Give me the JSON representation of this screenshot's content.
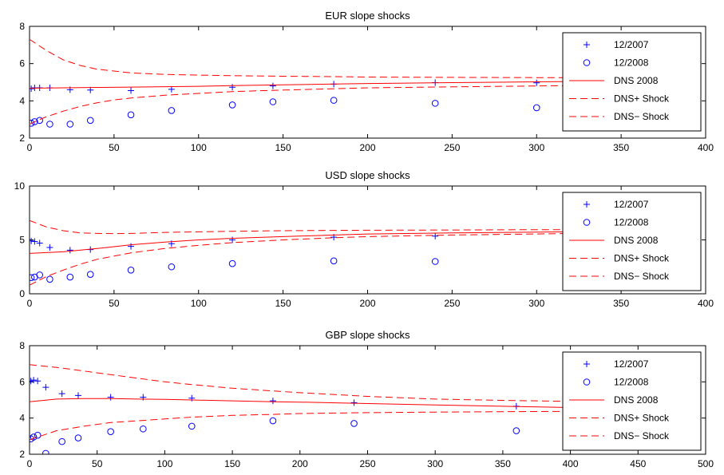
{
  "colors": {
    "observed": "#0000ff",
    "model": "#ff0000",
    "axes": "#000000",
    "background": "#ffffff"
  },
  "chart_data": [
    {
      "type": "line",
      "title": "EUR slope shocks",
      "xlabel": "",
      "ylabel": "",
      "xlim": [
        0,
        400
      ],
      "ylim": [
        2,
        8
      ],
      "xticks": [
        0,
        50,
        100,
        150,
        200,
        250,
        300,
        350,
        400
      ],
      "yticks": [
        2,
        4,
        6,
        8
      ],
      "legend": {
        "position": "top-right",
        "entries": [
          "12/2007",
          "12/2008",
          "DNS 2008",
          "DNS+ Shock",
          "DNS− Shock"
        ]
      },
      "series": [
        {
          "name": "12/2007",
          "style": "plus",
          "x": [
            1,
            3,
            6,
            12,
            24,
            36,
            60,
            84,
            120,
            144,
            180,
            240,
            300
          ],
          "y": [
            4.65,
            4.7,
            4.7,
            4.7,
            4.6,
            4.58,
            4.55,
            4.62,
            4.73,
            4.8,
            4.9,
            4.98,
            4.97
          ]
        },
        {
          "name": "12/2008",
          "style": "circle",
          "x": [
            1,
            3,
            6,
            12,
            24,
            36,
            60,
            84,
            120,
            144,
            180,
            240,
            300
          ],
          "y": [
            2.8,
            2.88,
            2.95,
            2.75,
            2.75,
            2.95,
            3.25,
            3.48,
            3.78,
            3.95,
            4.03,
            3.87,
            3.63
          ]
        },
        {
          "name": "DNS 2008",
          "style": "solid",
          "x": [
            0,
            20,
            40,
            60,
            80,
            100,
            120,
            150,
            180,
            200,
            250,
            300,
            320
          ],
          "y": [
            4.68,
            4.7,
            4.72,
            4.74,
            4.76,
            4.78,
            4.82,
            4.86,
            4.9,
            4.93,
            4.98,
            5.02,
            5.04
          ]
        },
        {
          "name": "DNS+ Shock",
          "style": "dashed",
          "x": [
            0,
            5,
            10,
            20,
            30,
            40,
            50,
            60,
            80,
            100,
            120,
            150,
            180,
            200,
            250,
            300,
            320
          ],
          "y": [
            7.3,
            7.0,
            6.7,
            6.2,
            5.9,
            5.7,
            5.6,
            5.5,
            5.42,
            5.38,
            5.35,
            5.32,
            5.3,
            5.28,
            5.26,
            5.25,
            5.25
          ]
        },
        {
          "name": "DNS− Shock",
          "style": "dashed",
          "x": [
            0,
            5,
            10,
            20,
            30,
            40,
            50,
            60,
            80,
            100,
            120,
            150,
            180,
            200,
            250,
            300,
            320
          ],
          "y": [
            2.75,
            2.95,
            3.15,
            3.45,
            3.7,
            3.9,
            4.05,
            4.15,
            4.3,
            4.4,
            4.5,
            4.58,
            4.65,
            4.7,
            4.75,
            4.8,
            4.82
          ]
        }
      ]
    },
    {
      "type": "line",
      "title": "USD slope shocks",
      "xlabel": "",
      "ylabel": "",
      "xlim": [
        0,
        400
      ],
      "ylim": [
        0,
        10
      ],
      "xticks": [
        0,
        50,
        100,
        150,
        200,
        250,
        300,
        350,
        400
      ],
      "yticks": [
        0,
        5,
        10
      ],
      "legend": {
        "position": "top-right",
        "entries": [
          "12/2007",
          "12/2008",
          "DNS 2008",
          "DNS+ Shock",
          "DNS− Shock"
        ]
      },
      "series": [
        {
          "name": "12/2007",
          "style": "plus",
          "x": [
            1,
            3,
            6,
            12,
            24,
            36,
            60,
            84,
            120,
            180,
            240
          ],
          "y": [
            4.9,
            4.85,
            4.7,
            4.3,
            4.05,
            4.1,
            4.4,
            4.65,
            5.0,
            5.25,
            5.35
          ]
        },
        {
          "name": "12/2008",
          "style": "circle",
          "x": [
            1,
            3,
            6,
            12,
            24,
            36,
            60,
            84,
            120,
            180,
            240
          ],
          "y": [
            1.5,
            1.55,
            1.75,
            1.35,
            1.55,
            1.8,
            2.2,
            2.5,
            2.8,
            3.05,
            3.0
          ]
        },
        {
          "name": "DNS 2008",
          "style": "solid",
          "x": [
            0,
            20,
            40,
            60,
            80,
            100,
            120,
            150,
            180,
            200,
            250,
            300,
            320
          ],
          "y": [
            3.75,
            3.9,
            4.2,
            4.55,
            4.8,
            5.0,
            5.15,
            5.3,
            5.45,
            5.55,
            5.65,
            5.72,
            5.75
          ]
        },
        {
          "name": "DNS+ Shock",
          "style": "dashed",
          "x": [
            0,
            5,
            10,
            20,
            30,
            40,
            50,
            60,
            80,
            100,
            120,
            150,
            180,
            200,
            250,
            300,
            320
          ],
          "y": [
            6.8,
            6.5,
            6.2,
            5.85,
            5.65,
            5.6,
            5.58,
            5.6,
            5.7,
            5.75,
            5.8,
            5.85,
            5.88,
            5.9,
            5.92,
            5.95,
            5.95
          ]
        },
        {
          "name": "DNS− Shock",
          "style": "dashed",
          "x": [
            0,
            5,
            10,
            20,
            30,
            40,
            50,
            60,
            80,
            100,
            120,
            150,
            180,
            200,
            250,
            300,
            320
          ],
          "y": [
            0.8,
            1.2,
            1.6,
            2.2,
            2.75,
            3.2,
            3.5,
            3.8,
            4.2,
            4.5,
            4.75,
            5.0,
            5.2,
            5.3,
            5.45,
            5.55,
            5.6
          ]
        }
      ]
    },
    {
      "type": "line",
      "title": "GBP slope shocks",
      "xlabel": "",
      "ylabel": "",
      "xlim": [
        0,
        500
      ],
      "ylim": [
        2,
        8
      ],
      "xticks": [
        0,
        50,
        100,
        150,
        200,
        250,
        300,
        350,
        400,
        450,
        500
      ],
      "yticks": [
        2,
        4,
        6,
        8
      ],
      "legend": {
        "position": "top-right",
        "entries": [
          "12/2007",
          "12/2008",
          "DNS 2008",
          "DNS+ Shock",
          "DNS− Shock"
        ]
      },
      "series": [
        {
          "name": "12/2007",
          "style": "plus",
          "x": [
            1,
            3,
            6,
            12,
            24,
            36,
            60,
            84,
            120,
            180,
            240,
            360
          ],
          "y": [
            6.05,
            6.1,
            6.05,
            5.7,
            5.35,
            5.25,
            5.15,
            5.15,
            5.1,
            4.95,
            4.85,
            4.65
          ]
        },
        {
          "name": "12/2008",
          "style": "circle",
          "x": [
            1,
            3,
            6,
            12,
            24,
            36,
            60,
            84,
            120,
            180,
            240,
            360
          ],
          "y": [
            2.85,
            2.95,
            3.05,
            2.05,
            2.7,
            2.9,
            3.25,
            3.4,
            3.55,
            3.85,
            3.7,
            3.3
          ]
        },
        {
          "name": "DNS 2008",
          "style": "solid",
          "x": [
            0,
            20,
            40,
            60,
            80,
            100,
            120,
            150,
            180,
            200,
            250,
            300,
            350,
            400,
            420
          ],
          "y": [
            4.9,
            5.05,
            5.08,
            5.08,
            5.05,
            5.03,
            5.0,
            4.95,
            4.9,
            4.88,
            4.8,
            4.72,
            4.65,
            4.58,
            4.55
          ]
        },
        {
          "name": "DNS+ Shock",
          "style": "dashed",
          "x": [
            0,
            20,
            40,
            60,
            80,
            100,
            120,
            150,
            180,
            200,
            250,
            300,
            350,
            400,
            420
          ],
          "y": [
            6.95,
            6.8,
            6.6,
            6.4,
            6.2,
            6.0,
            5.85,
            5.65,
            5.5,
            5.4,
            5.2,
            5.05,
            4.98,
            4.92,
            4.9
          ]
        },
        {
          "name": "DNS− Shock",
          "style": "dashed",
          "x": [
            0,
            20,
            40,
            60,
            80,
            100,
            120,
            150,
            180,
            200,
            250,
            300,
            350,
            400,
            420
          ],
          "y": [
            2.8,
            3.3,
            3.55,
            3.75,
            3.85,
            3.95,
            4.05,
            4.15,
            4.2,
            4.25,
            4.3,
            4.33,
            4.35,
            4.37,
            4.38
          ]
        }
      ]
    }
  ]
}
